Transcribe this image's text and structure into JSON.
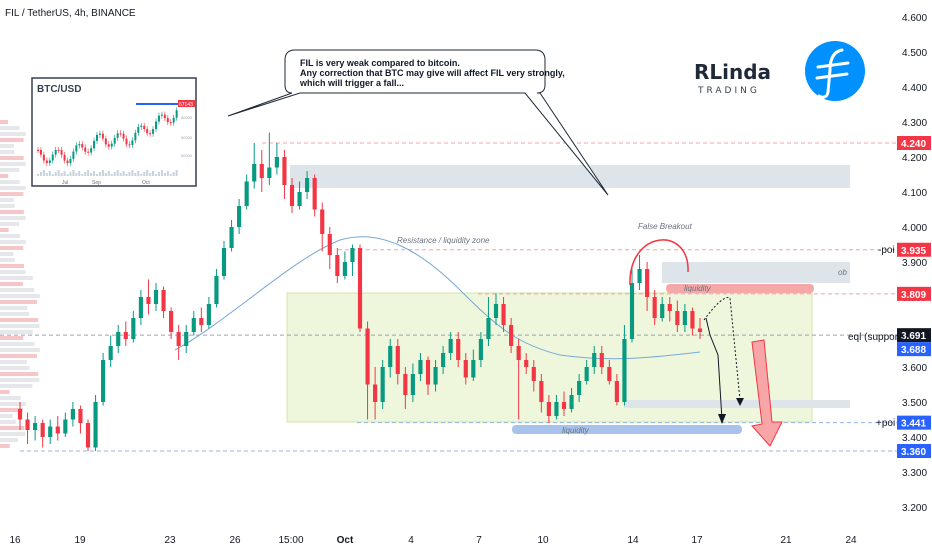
{
  "header": {
    "title": "FIL / TetherUS, 4h, BINANCE"
  },
  "callout": {
    "line1": "FIL is very weak compared to bitcoin.",
    "line2": "Any correction that BTC may give will affect FIL very strongly,",
    "line3": "which will trigger a fall..."
  },
  "inset": {
    "title": "BTC/USD",
    "x_labels": [
      "Jul",
      "Sep",
      "Oct"
    ],
    "price_tag": "67143",
    "y_labels": [
      "80000",
      "60000",
      "50000"
    ]
  },
  "brand": {
    "name": "RLinda",
    "sub": "TRADING"
  },
  "annotations": {
    "resistance": "Resistance / liquidity zone",
    "false_breakout": "False Breakout",
    "liquidity_top": "liquidity",
    "liquidity_bottom": "liquidity",
    "ob": "ob",
    "poi_top": "-poi",
    "poi_bottom": "+poi",
    "eql_support": "eql (support)"
  },
  "colors": {
    "up": "#089981",
    "down": "#f23645",
    "price_red": "#f23645",
    "price_blue": "#2962ff",
    "zone_green": "#e8f5d0",
    "zone_gray": "#d1d9e0",
    "liquidity_blue": "#a7c3ec",
    "liquidity_red": "#f4a8a8",
    "filecoin_blue": "#0090ff"
  },
  "chart_data": {
    "type": "candlestick",
    "symbol": "FIL / TetherUS",
    "timeframe": "4h",
    "exchange": "BINANCE",
    "ylim": [
      3.16,
      4.62
    ],
    "y_ticks": [
      "4.600",
      "4.500",
      "4.400",
      "4.300",
      "4.200",
      "4.100",
      "4.000",
      "3.900",
      "3.800",
      "3.700",
      "3.600",
      "3.500",
      "3.400",
      "3.300",
      "3.200"
    ],
    "x_labels": [
      "16",
      "19",
      "23",
      "26",
      "15:00",
      "Oct",
      "4",
      "7",
      "10",
      "14",
      "17",
      "21",
      "24"
    ],
    "price_levels": [
      {
        "label": "4.240",
        "value": 4.24,
        "color": "#f23645"
      },
      {
        "label": "3.935",
        "value": 3.935,
        "color": "#f23645"
      },
      {
        "label": "3.809",
        "value": 3.809,
        "color": "#f23645"
      },
      {
        "label": "3.691",
        "value": 3.691,
        "color": "#131722"
      },
      {
        "label": "3.688",
        "value": 3.688,
        "color": "#2962ff"
      },
      {
        "label": "3.441",
        "value": 3.441,
        "color": "#2962ff"
      },
      {
        "label": "3.360",
        "value": 3.36,
        "color": "#2962ff"
      }
    ],
    "candles": [
      [
        3.48,
        3.45,
        3.5,
        3.42
      ],
      [
        3.45,
        3.42,
        3.47,
        3.38
      ],
      [
        3.42,
        3.44,
        3.46,
        3.39
      ],
      [
        3.44,
        3.4,
        3.45,
        3.37
      ],
      [
        3.4,
        3.43,
        3.45,
        3.38
      ],
      [
        3.43,
        3.41,
        3.46,
        3.39
      ],
      [
        3.41,
        3.45,
        3.47,
        3.4
      ],
      [
        3.45,
        3.48,
        3.5,
        3.43
      ],
      [
        3.48,
        3.44,
        3.49,
        3.41
      ],
      [
        3.44,
        3.37,
        3.45,
        3.36
      ],
      [
        3.37,
        3.5,
        3.52,
        3.36
      ],
      [
        3.5,
        3.62,
        3.64,
        3.49
      ],
      [
        3.62,
        3.66,
        3.69,
        3.6
      ],
      [
        3.66,
        3.7,
        3.72,
        3.64
      ],
      [
        3.7,
        3.68,
        3.73,
        3.66
      ],
      [
        3.68,
        3.74,
        3.76,
        3.67
      ],
      [
        3.74,
        3.8,
        3.82,
        3.72
      ],
      [
        3.8,
        3.78,
        3.85,
        3.75
      ],
      [
        3.78,
        3.82,
        3.84,
        3.76
      ],
      [
        3.82,
        3.76,
        3.83,
        3.74
      ],
      [
        3.76,
        3.7,
        3.77,
        3.68
      ],
      [
        3.7,
        3.66,
        3.72,
        3.62
      ],
      [
        3.66,
        3.7,
        3.72,
        3.64
      ],
      [
        3.7,
        3.74,
        3.76,
        3.69
      ],
      [
        3.74,
        3.72,
        3.77,
        3.7
      ],
      [
        3.72,
        3.78,
        3.8,
        3.71
      ],
      [
        3.78,
        3.86,
        3.88,
        3.77
      ],
      [
        3.86,
        3.94,
        3.96,
        3.85
      ],
      [
        3.94,
        4.0,
        4.02,
        3.93
      ],
      [
        4.0,
        4.06,
        4.08,
        3.98
      ],
      [
        4.06,
        4.13,
        4.15,
        4.05
      ],
      [
        4.13,
        4.18,
        4.24,
        4.11
      ],
      [
        4.18,
        4.14,
        4.22,
        4.1
      ],
      [
        4.14,
        4.17,
        4.27,
        4.12
      ],
      [
        4.17,
        4.2,
        4.24,
        4.15
      ],
      [
        4.2,
        4.12,
        4.22,
        4.08
      ],
      [
        4.12,
        4.06,
        4.14,
        4.04
      ],
      [
        4.06,
        4.1,
        4.13,
        4.05
      ],
      [
        4.1,
        4.14,
        4.16,
        4.08
      ],
      [
        4.14,
        4.05,
        4.15,
        4.03
      ],
      [
        4.05,
        3.98,
        4.07,
        3.93
      ],
      [
        3.98,
        3.92,
        4.0,
        3.88
      ],
      [
        3.92,
        3.86,
        3.94,
        3.84
      ],
      [
        3.86,
        3.9,
        3.93,
        3.85
      ],
      [
        3.9,
        3.94,
        3.95,
        3.86
      ],
      [
        3.94,
        3.71,
        3.95,
        3.7
      ],
      [
        3.71,
        3.55,
        3.73,
        3.45
      ],
      [
        3.55,
        3.5,
        3.6,
        3.45
      ],
      [
        3.5,
        3.6,
        3.62,
        3.48
      ],
      [
        3.6,
        3.66,
        3.68,
        3.57
      ],
      [
        3.66,
        3.58,
        3.68,
        3.55
      ],
      [
        3.58,
        3.52,
        3.6,
        3.48
      ],
      [
        3.52,
        3.58,
        3.61,
        3.5
      ],
      [
        3.58,
        3.62,
        3.64,
        3.56
      ],
      [
        3.62,
        3.55,
        3.63,
        3.52
      ],
      [
        3.55,
        3.6,
        3.62,
        3.53
      ],
      [
        3.6,
        3.64,
        3.66,
        3.58
      ],
      [
        3.64,
        3.68,
        3.7,
        3.62
      ],
      [
        3.68,
        3.62,
        3.7,
        3.6
      ],
      [
        3.62,
        3.57,
        3.64,
        3.55
      ],
      [
        3.57,
        3.62,
        3.65,
        3.56
      ],
      [
        3.62,
        3.68,
        3.7,
        3.6
      ],
      [
        3.68,
        3.74,
        3.8,
        3.66
      ],
      [
        3.74,
        3.78,
        3.81,
        3.72
      ],
      [
        3.78,
        3.72,
        3.8,
        3.7
      ],
      [
        3.72,
        3.66,
        3.74,
        3.64
      ],
      [
        3.66,
        3.62,
        3.68,
        3.45
      ],
      [
        3.62,
        3.6,
        3.64,
        3.58
      ],
      [
        3.6,
        3.56,
        3.62,
        3.53
      ],
      [
        3.56,
        3.5,
        3.58,
        3.47
      ],
      [
        3.5,
        3.46,
        3.52,
        3.44
      ],
      [
        3.46,
        3.5,
        3.52,
        3.45
      ],
      [
        3.5,
        3.48,
        3.53,
        3.46
      ],
      [
        3.48,
        3.52,
        3.54,
        3.47
      ],
      [
        3.52,
        3.56,
        3.58,
        3.5
      ],
      [
        3.56,
        3.6,
        3.62,
        3.55
      ],
      [
        3.6,
        3.64,
        3.66,
        3.58
      ],
      [
        3.64,
        3.6,
        3.66,
        3.58
      ],
      [
        3.6,
        3.56,
        3.62,
        3.55
      ],
      [
        3.56,
        3.5,
        3.58,
        3.49
      ],
      [
        3.5,
        3.68,
        3.72,
        3.49
      ],
      [
        3.68,
        3.84,
        3.89,
        3.67
      ],
      [
        3.84,
        3.88,
        3.92,
        3.82
      ],
      [
        3.88,
        3.8,
        3.9,
        3.76
      ],
      [
        3.8,
        3.74,
        3.82,
        3.72
      ],
      [
        3.74,
        3.78,
        3.8,
        3.73
      ],
      [
        3.78,
        3.76,
        3.8,
        3.73
      ],
      [
        3.76,
        3.72,
        3.79,
        3.7
      ],
      [
        3.72,
        3.76,
        3.78,
        3.7
      ],
      [
        3.76,
        3.71,
        3.77,
        3.69
      ],
      [
        3.71,
        3.7,
        3.74,
        3.68
      ]
    ]
  }
}
